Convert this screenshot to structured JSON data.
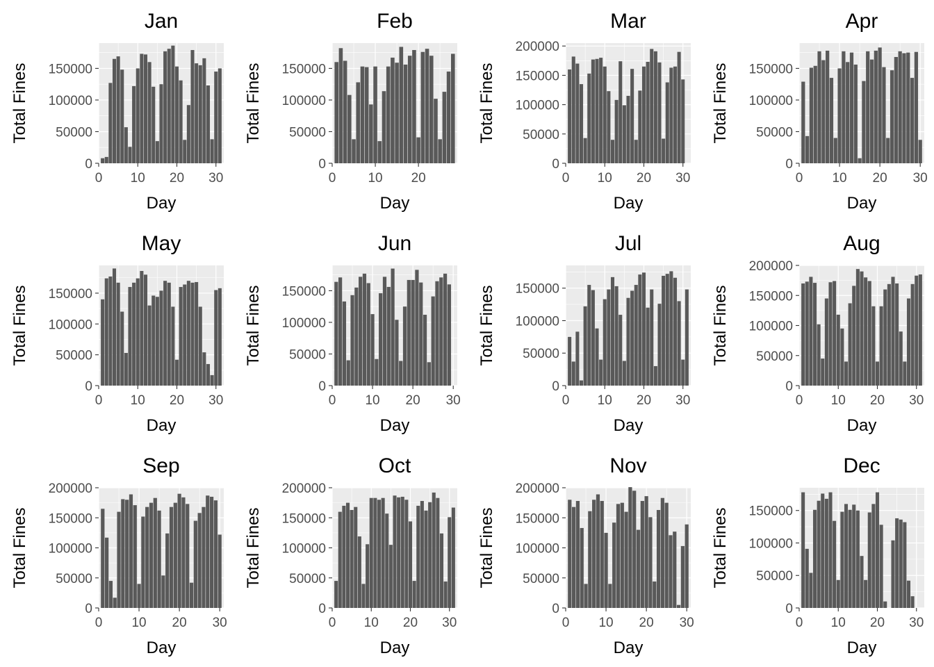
{
  "chart_data": [
    {
      "type": "bar",
      "title": "Jan",
      "xlabel": "Day",
      "ylabel": "Total Fines",
      "xlim": [
        0,
        32
      ],
      "ylim": [
        0,
        190000
      ],
      "xticks": [
        0,
        10,
        20,
        30
      ],
      "yticks": [
        0,
        50000,
        100000,
        150000
      ],
      "ytick_labels": [
        "0",
        "50000",
        "100000",
        "150000"
      ],
      "x": [
        1,
        2,
        3,
        4,
        5,
        6,
        7,
        8,
        9,
        10,
        11,
        12,
        13,
        14,
        15,
        16,
        17,
        18,
        19,
        20,
        21,
        22,
        23,
        24,
        25,
        26,
        27,
        28,
        29,
        30,
        31
      ],
      "values": [
        8000,
        10000,
        127000,
        165000,
        169000,
        148000,
        57000,
        26000,
        122000,
        150000,
        173000,
        172000,
        160000,
        121000,
        35000,
        125000,
        177000,
        181000,
        186000,
        153000,
        131000,
        37000,
        92000,
        179000,
        158000,
        155000,
        166000,
        123000,
        38000,
        145000,
        150000
      ]
    },
    {
      "type": "bar",
      "title": "Feb",
      "xlabel": "Day",
      "ylabel": "Total Fines",
      "xlim": [
        0,
        29
      ],
      "ylim": [
        0,
        190000
      ],
      "xticks": [
        0,
        10,
        20
      ],
      "yticks": [
        0,
        50000,
        100000,
        150000
      ],
      "ytick_labels": [
        "0",
        "50000",
        "100000",
        "150000"
      ],
      "x": [
        1,
        2,
        3,
        4,
        5,
        6,
        7,
        8,
        9,
        10,
        11,
        12,
        13,
        14,
        15,
        16,
        17,
        18,
        19,
        20,
        21,
        22,
        23,
        24,
        25,
        26,
        27,
        28
      ],
      "values": [
        160000,
        182000,
        162000,
        108000,
        38000,
        128000,
        153000,
        152000,
        93000,
        153000,
        35000,
        114000,
        153000,
        167000,
        159000,
        184000,
        156000,
        170000,
        179000,
        41000,
        176000,
        181000,
        170000,
        102000,
        38000,
        113000,
        145000,
        173000
      ]
    },
    {
      "type": "bar",
      "title": "Mar",
      "xlabel": "Day",
      "ylabel": "Total Fines",
      "xlim": [
        0,
        32
      ],
      "ylim": [
        0,
        205000
      ],
      "xticks": [
        0,
        10,
        20,
        30
      ],
      "yticks": [
        0,
        50000,
        100000,
        150000,
        200000
      ],
      "ytick_labels": [
        "0",
        "50000",
        "100000",
        "150000",
        "200000"
      ],
      "x": [
        1,
        2,
        3,
        4,
        5,
        6,
        7,
        8,
        9,
        10,
        11,
        12,
        13,
        14,
        15,
        16,
        17,
        18,
        19,
        20,
        21,
        22,
        23,
        24,
        25,
        26,
        27,
        28,
        29,
        30,
        31
      ],
      "values": [
        160000,
        182000,
        170000,
        135000,
        43000,
        153000,
        177000,
        178000,
        180000,
        165000,
        123000,
        40000,
        108000,
        174000,
        99000,
        115000,
        161000,
        40000,
        124000,
        165000,
        173000,
        195000,
        191000,
        172000,
        42000,
        138000,
        163000,
        165000,
        190000,
        143000,
        0
      ]
    },
    {
      "type": "bar",
      "title": "Apr",
      "xlabel": "Day",
      "ylabel": "Total Fines",
      "xlim": [
        0,
        31
      ],
      "ylim": [
        0,
        190000
      ],
      "xticks": [
        0,
        10,
        20,
        30
      ],
      "yticks": [
        0,
        50000,
        100000,
        150000
      ],
      "ytick_labels": [
        "0",
        "50000",
        "100000",
        "150000"
      ],
      "x": [
        1,
        2,
        3,
        4,
        5,
        6,
        7,
        8,
        9,
        10,
        11,
        12,
        13,
        14,
        15,
        16,
        17,
        18,
        19,
        20,
        21,
        22,
        23,
        24,
        25,
        26,
        27,
        28,
        29,
        30
      ],
      "values": [
        129000,
        43000,
        151000,
        154000,
        177000,
        163000,
        178000,
        135000,
        40000,
        150000,
        177000,
        160000,
        175000,
        156000,
        8000,
        130000,
        177000,
        164000,
        178000,
        183000,
        152000,
        40000,
        147000,
        168000,
        177000,
        174000,
        175000,
        135000,
        176000,
        37000
      ]
    },
    {
      "type": "bar",
      "title": "May",
      "xlabel": "Day",
      "ylabel": "Total Fines",
      "xlim": [
        0,
        32
      ],
      "ylim": [
        0,
        195000
      ],
      "xticks": [
        0,
        10,
        20,
        30
      ],
      "yticks": [
        0,
        50000,
        100000,
        150000
      ],
      "ytick_labels": [
        "0",
        "50000",
        "100000",
        "150000"
      ],
      "x": [
        1,
        2,
        3,
        4,
        5,
        6,
        7,
        8,
        9,
        10,
        11,
        12,
        13,
        14,
        15,
        16,
        17,
        18,
        19,
        20,
        21,
        22,
        23,
        24,
        25,
        26,
        27,
        28,
        29,
        30,
        31
      ],
      "values": [
        140000,
        174000,
        177000,
        190000,
        167000,
        120000,
        53000,
        160000,
        167000,
        174000,
        186000,
        180000,
        130000,
        146000,
        144000,
        154000,
        170000,
        167000,
        128000,
        42000,
        160000,
        164000,
        170000,
        167000,
        168000,
        128000,
        54000,
        35000,
        17000,
        155000,
        158000
      ]
    },
    {
      "type": "bar",
      "title": "Jun",
      "xlabel": "Day",
      "ylabel": "Total Fines",
      "xlim": [
        0,
        31
      ],
      "ylim": [
        0,
        190000
      ],
      "xticks": [
        0,
        10,
        20,
        30
      ],
      "yticks": [
        0,
        50000,
        100000,
        150000
      ],
      "ytick_labels": [
        "0",
        "50000",
        "100000",
        "150000"
      ],
      "x": [
        1,
        2,
        3,
        4,
        5,
        6,
        7,
        8,
        9,
        10,
        11,
        12,
        13,
        14,
        15,
        16,
        17,
        18,
        19,
        20,
        21,
        22,
        23,
        24,
        25,
        26,
        27,
        28,
        29,
        30
      ],
      "values": [
        164000,
        171000,
        133000,
        40000,
        143000,
        155000,
        172000,
        177000,
        162000,
        113000,
        42000,
        146000,
        172000,
        156000,
        185000,
        104000,
        39000,
        125000,
        167000,
        167000,
        183000,
        163000,
        112000,
        37000,
        141000,
        165000,
        171000,
        177000,
        160000,
        0
      ]
    },
    {
      "type": "bar",
      "title": "Jul",
      "xlabel": "Day",
      "ylabel": "Total Fines",
      "xlim": [
        0,
        32
      ],
      "ylim": [
        0,
        185000
      ],
      "xticks": [
        0,
        10,
        20,
        30
      ],
      "yticks": [
        0,
        50000,
        100000,
        150000
      ],
      "ytick_labels": [
        "0",
        "50000",
        "100000",
        "150000"
      ],
      "x": [
        1,
        2,
        3,
        4,
        5,
        6,
        7,
        8,
        9,
        10,
        11,
        12,
        13,
        14,
        15,
        16,
        17,
        18,
        19,
        20,
        21,
        22,
        23,
        24,
        25,
        26,
        27,
        28,
        29,
        30,
        31
      ],
      "values": [
        75000,
        37000,
        83000,
        8000,
        122000,
        155000,
        147000,
        88000,
        40000,
        133000,
        148000,
        167000,
        153000,
        109000,
        38000,
        135000,
        146000,
        155000,
        171000,
        174000,
        120000,
        148000,
        30000,
        126000,
        169000,
        172000,
        176000,
        166000,
        130000,
        40000,
        148000
      ]
    },
    {
      "type": "bar",
      "title": "Aug",
      "xlabel": "Day",
      "ylabel": "Total Fines",
      "xlim": [
        0,
        32
      ],
      "ylim": [
        0,
        200000
      ],
      "xticks": [
        0,
        10,
        20,
        30
      ],
      "yticks": [
        0,
        50000,
        100000,
        150000,
        200000
      ],
      "ytick_labels": [
        "0",
        "50000",
        "100000",
        "150000",
        "200000"
      ],
      "x": [
        1,
        2,
        3,
        4,
        5,
        6,
        7,
        8,
        9,
        10,
        11,
        12,
        13,
        14,
        15,
        16,
        17,
        18,
        19,
        20,
        21,
        22,
        23,
        24,
        25,
        26,
        27,
        28,
        29,
        30,
        31
      ],
      "values": [
        170000,
        173000,
        181000,
        171000,
        102000,
        45000,
        145000,
        172000,
        174000,
        118000,
        95000,
        40000,
        137000,
        166000,
        194000,
        190000,
        180000,
        174000,
        132000,
        40000,
        132000,
        160000,
        169000,
        181000,
        170000,
        90000,
        40000,
        145000,
        169000,
        183000,
        185000
      ]
    },
    {
      "type": "bar",
      "title": "Sep",
      "xlabel": "Day",
      "ylabel": "Total Fines",
      "xlim": [
        0,
        31
      ],
      "ylim": [
        0,
        200000
      ],
      "xticks": [
        0,
        10,
        20,
        30
      ],
      "yticks": [
        0,
        50000,
        100000,
        150000,
        200000
      ],
      "ytick_labels": [
        "0",
        "50000",
        "100000",
        "150000",
        "200000"
      ],
      "x": [
        1,
        2,
        3,
        4,
        5,
        6,
        7,
        8,
        9,
        10,
        11,
        12,
        13,
        14,
        15,
        16,
        17,
        18,
        19,
        20,
        21,
        22,
        23,
        24,
        25,
        26,
        27,
        28,
        29,
        30
      ],
      "values": [
        165000,
        117000,
        45000,
        17000,
        160000,
        181000,
        180000,
        189000,
        171000,
        40000,
        152000,
        168000,
        175000,
        183000,
        162000,
        54000,
        124000,
        168000,
        175000,
        190000,
        184000,
        173000,
        42000,
        145000,
        158000,
        168000,
        187000,
        185000,
        179000,
        122000
      ]
    },
    {
      "type": "bar",
      "title": "Oct",
      "xlabel": "Day",
      "ylabel": "Total Fines",
      "xlim": [
        0,
        32
      ],
      "ylim": [
        0,
        200000
      ],
      "xticks": [
        0,
        10,
        20,
        30
      ],
      "yticks": [
        0,
        50000,
        100000,
        150000,
        200000
      ],
      "ytick_labels": [
        "0",
        "50000",
        "100000",
        "150000",
        "200000"
      ],
      "x": [
        1,
        2,
        3,
        4,
        5,
        6,
        7,
        8,
        9,
        10,
        11,
        12,
        13,
        14,
        15,
        16,
        17,
        18,
        19,
        20,
        21,
        22,
        23,
        24,
        25,
        26,
        27,
        28,
        29,
        30,
        31
      ],
      "values": [
        45000,
        160000,
        170000,
        175000,
        163000,
        168000,
        119000,
        40000,
        106000,
        183000,
        183000,
        180000,
        183000,
        157000,
        105000,
        187000,
        184000,
        185000,
        180000,
        144000,
        45000,
        170000,
        178000,
        162000,
        176000,
        192000,
        183000,
        124000,
        44000,
        151000,
        167000
      ]
    },
    {
      "type": "bar",
      "title": "Nov",
      "xlabel": "Day",
      "ylabel": "Total Fines",
      "xlim": [
        0,
        31
      ],
      "ylim": [
        0,
        200000
      ],
      "xticks": [
        0,
        10,
        20,
        30
      ],
      "yticks": [
        0,
        50000,
        100000,
        150000,
        200000
      ],
      "ytick_labels": [
        "0",
        "50000",
        "100000",
        "150000",
        "200000"
      ],
      "x": [
        1,
        2,
        3,
        4,
        5,
        6,
        7,
        8,
        9,
        10,
        11,
        12,
        13,
        14,
        15,
        16,
        17,
        18,
        19,
        20,
        21,
        22,
        23,
        24,
        25,
        26,
        27,
        28,
        29,
        30
      ],
      "values": [
        180000,
        168000,
        178000,
        133000,
        40000,
        161000,
        180000,
        189000,
        178000,
        125000,
        40000,
        142000,
        173000,
        175000,
        160000,
        201000,
        195000,
        130000,
        178000,
        186000,
        151000,
        44000,
        163000,
        183000,
        175000,
        121000,
        127000,
        5000,
        103000,
        139000
      ]
    },
    {
      "type": "bar",
      "title": "Dec",
      "xlabel": "Day",
      "ylabel": "Total Fines",
      "xlim": [
        0,
        32
      ],
      "ylim": [
        0,
        185000
      ],
      "xticks": [
        0,
        10,
        20,
        30
      ],
      "yticks": [
        0,
        50000,
        100000,
        150000
      ],
      "ytick_labels": [
        "0",
        "50000",
        "100000",
        "150000"
      ],
      "x": [
        1,
        2,
        3,
        4,
        5,
        6,
        7,
        8,
        9,
        10,
        11,
        12,
        13,
        14,
        15,
        16,
        17,
        18,
        19,
        20,
        21,
        22,
        23,
        24,
        25,
        26,
        27,
        28,
        29,
        30,
        31
      ],
      "values": [
        178000,
        91000,
        54000,
        151000,
        165000,
        176000,
        168000,
        178000,
        134000,
        43000,
        148000,
        160000,
        151000,
        159000,
        150000,
        80000,
        43000,
        147000,
        160000,
        178000,
        128000,
        10000,
        0,
        104000,
        138000,
        136000,
        132000,
        42000,
        18000,
        0,
        0
      ]
    }
  ]
}
